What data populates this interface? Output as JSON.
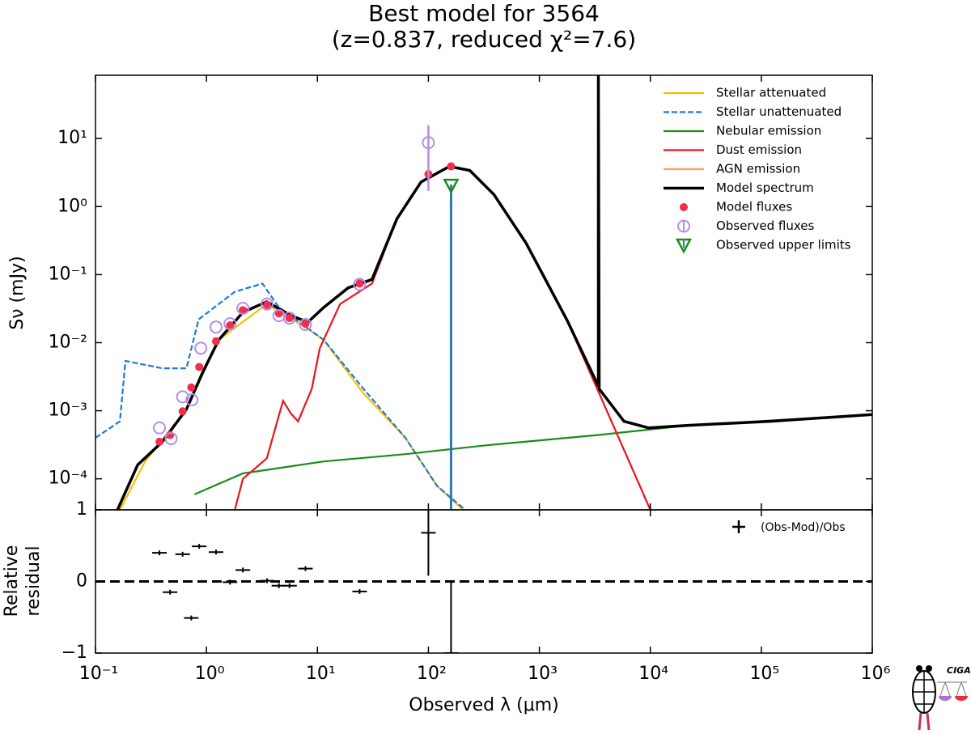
{
  "title": [
    "Best model for 3564",
    "(z=0.837, reduced χ²=7.6)"
  ],
  "logo": {
    "text": "CIGALE"
  },
  "chart_data": [
    {
      "type": "sed",
      "ylabel": "Sν (mJy)",
      "xlog": true,
      "ylog": true,
      "xlim": [
        0.1,
        1000000
      ],
      "ylim": [
        3.5e-05,
        85
      ],
      "yticks": [
        {
          "value": 10,
          "label": "10¹"
        },
        {
          "value": 1,
          "label": "10⁰"
        },
        {
          "value": 0.1,
          "label": "10⁻¹"
        },
        {
          "value": 0.01,
          "label": "10⁻²"
        },
        {
          "value": 0.001,
          "label": "10⁻³"
        },
        {
          "value": 0.0001,
          "label": "10⁻⁴"
        }
      ],
      "legend": "upper right",
      "series": [
        {
          "name": "Stellar attenuated",
          "color": "#f2c200",
          "style": "line",
          "x": [
            0.166,
            0.28,
            0.66,
            1.29,
            3.5,
            8.2,
            11.4,
            26,
            62,
            120,
            205
          ],
          "values": [
            3.5e-05,
            0.00018,
            0.00105,
            0.011,
            0.037,
            0.016,
            0.011,
            0.0018,
            0.0004,
            7.8e-05,
            3.5e-05
          ]
        },
        {
          "name": "Stellar unattenuated",
          "color": "#1f77e0",
          "style": "dashed",
          "x": [
            0.1,
            0.166,
            0.186,
            0.4,
            0.66,
            0.85,
            1.8,
            3.2,
            4.5,
            11.4,
            26,
            62,
            120,
            215
          ],
          "values": [
            0.0004,
            0.0007,
            0.0054,
            0.0042,
            0.0042,
            0.022,
            0.056,
            0.074,
            0.033,
            0.011,
            0.0021,
            0.0004,
            7.8e-05,
            3.5e-05
          ]
        },
        {
          "name": "Nebular emission",
          "color": "#1a8c1a",
          "style": "line",
          "x": [
            0.78,
            2.13,
            11.4,
            62,
            330,
            3400,
            22000,
            1000000
          ],
          "values": [
            5.9e-05,
            0.00012,
            0.00018,
            0.00023,
            0.00031,
            0.00044,
            0.00061,
            0.00088
          ]
        },
        {
          "name": "Dust emission",
          "color": "#e8141a",
          "style": "line",
          "x": [
            1.8,
            2.13,
            3.5,
            4.9,
            5.8,
            6.7,
            8.9,
            10.5,
            16,
            31,
            52,
            86,
            155,
            236,
            390,
            760,
            1770,
            3460,
            10000
          ],
          "values": [
            3.5e-05,
            0.0001,
            0.0002,
            0.0014,
            0.0009,
            0.0007,
            0.0021,
            0.0083,
            0.037,
            0.074,
            0.66,
            2.3,
            3.9,
            3.4,
            1.5,
            0.29,
            0.0216,
            0.0018,
            3.5e-05
          ]
        },
        {
          "name": "AGN emission",
          "color": "#ffa060",
          "style": "line",
          "x": [],
          "values": []
        },
        {
          "name": "Model spectrum",
          "color": "#000000",
          "style": "thick",
          "x": [
            0.158,
            0.24,
            0.4,
            0.66,
            0.92,
            1.29,
            2.13,
            3.5,
            5.8,
            8.2,
            11.4,
            18.9,
            31,
            52,
            86,
            155,
            236,
            390,
            760,
            1770,
            3400,
            3400,
            3460,
            5780,
            9600,
            22000,
            120000,
            1000000
          ],
          "values": [
            3.5e-05,
            0.00016,
            0.00035,
            0.00105,
            0.0036,
            0.011,
            0.028,
            0.04,
            0.025,
            0.02,
            0.033,
            0.064,
            0.085,
            0.66,
            2.3,
            3.9,
            3.4,
            1.5,
            0.29,
            0.0216,
            0.0023,
            85,
            0.0021,
            0.0007,
            0.00056,
            0.00061,
            0.0007,
            0.00088
          ]
        },
        {
          "name": "Model fluxes",
          "color": "#f0304a",
          "style": "dot",
          "x": [
            0.377,
            0.47,
            0.61,
            0.73,
            0.86,
            1.22,
            1.63,
            2.13,
            3.52,
            4.5,
            5.6,
            7.8,
            24,
            100,
            160
          ],
          "values": [
            0.00035,
            0.00044,
            0.00098,
            0.0022,
            0.0044,
            0.0105,
            0.018,
            0.03,
            0.036,
            0.027,
            0.023,
            0.019,
            0.074,
            3.0,
            3.9
          ]
        },
        {
          "name": "Observed fluxes",
          "color": "#b58ce8",
          "style": "circle",
          "x": [
            0.377,
            0.48,
            0.61,
            0.74,
            0.89,
            1.22,
            1.63,
            2.13,
            3.52,
            4.5,
            5.6,
            7.8,
            24,
            100
          ],
          "values": [
            0.00056,
            0.00039,
            0.0016,
            0.00145,
            0.0083,
            0.017,
            0.019,
            0.032,
            0.037,
            0.025,
            0.023,
            0.0185,
            0.072,
            8.7
          ],
          "errors": [
            null,
            null,
            null,
            null,
            null,
            null,
            null,
            null,
            null,
            null,
            null,
            null,
            null,
            7
          ]
        },
        {
          "name": "Observed upper limits",
          "color": "#1a8c1a",
          "errorbar_color": "#2a78b8",
          "style": "triangle",
          "x": [
            160
          ],
          "values": [
            2.1
          ]
        }
      ]
    },
    {
      "type": "residual",
      "xlabel": "Observed λ (μm)",
      "ylabel": [
        "Relative",
        "residual"
      ],
      "xlog": true,
      "xlim": [
        0.1,
        1000000
      ],
      "ylim": [
        -1,
        1
      ],
      "xticks": [
        {
          "value": 0.1,
          "label": "10⁻¹"
        },
        {
          "value": 1,
          "label": "10⁰"
        },
        {
          "value": 10,
          "label": "10¹"
        },
        {
          "value": 100,
          "label": "10²"
        },
        {
          "value": 1000,
          "label": "10³"
        },
        {
          "value": 10000,
          "label": "10⁴"
        },
        {
          "value": 100000,
          "label": "10⁵"
        },
        {
          "value": 1000000,
          "label": "10⁶"
        }
      ],
      "yticks": [
        {
          "value": -1,
          "label": "−1"
        },
        0,
        1
      ],
      "reference_line": 0,
      "legend": "upper right",
      "series": [
        {
          "name": "(Obs-Mod)/Obs",
          "color": "#000000",
          "x": [
            0.377,
            0.47,
            0.61,
            0.73,
            0.86,
            1.22,
            1.63,
            2.13,
            3.52,
            4.5,
            5.6,
            7.8,
            24,
            100,
            160
          ],
          "values": [
            0.4,
            -0.15,
            0.38,
            -0.51,
            0.49,
            0.41,
            -0.01,
            0.16,
            0.01,
            -0.06,
            -0.06,
            0.18,
            -0.14,
            0.68,
            -1
          ],
          "errors": [
            null,
            null,
            null,
            null,
            null,
            null,
            null,
            null,
            null,
            null,
            null,
            null,
            null,
            0.6,
            1
          ]
        }
      ]
    }
  ]
}
